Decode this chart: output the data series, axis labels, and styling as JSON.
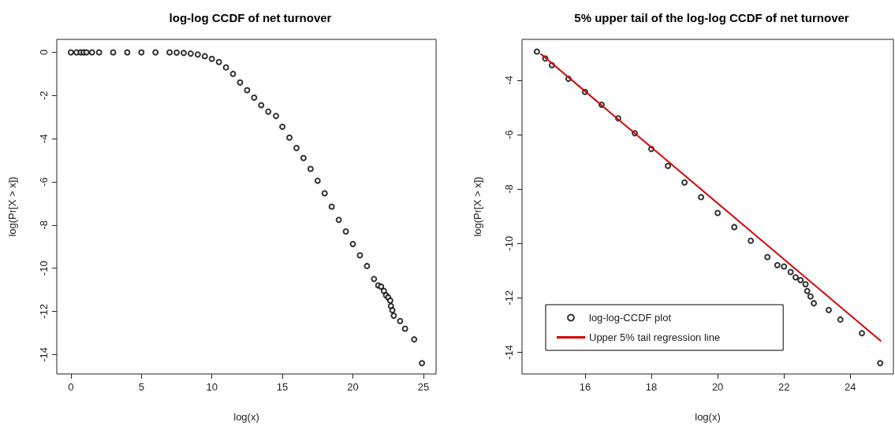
{
  "chart_data": [
    {
      "type": "scatter",
      "title": "log-log CCDF of net turnover",
      "xlabel": "log(x)",
      "ylabel": "log(Pr[X > x])",
      "xlim": [
        -1,
        25.9
      ],
      "ylim": [
        -14.9,
        0.6
      ],
      "xticks": [
        0,
        5,
        10,
        15,
        20,
        25
      ],
      "yticks": [
        -14,
        -12,
        -10,
        -8,
        -6,
        -4,
        -2,
        0
      ],
      "marker": "circle",
      "series": [
        {
          "color": "#000000",
          "x": [
            0,
            0.4,
            0.7,
            0.9,
            1.1,
            1.5,
            2,
            3,
            4,
            5,
            6,
            7,
            7.5,
            8,
            8.5,
            9,
            9.5,
            10,
            10.5,
            11,
            11.5,
            12,
            12.5,
            13,
            13.5,
            14,
            14.55,
            15,
            15.5,
            16,
            16.5,
            17,
            17.5,
            18,
            18.5,
            19,
            19.5,
            20,
            20.5,
            21,
            21.5,
            21.8,
            22,
            22.2,
            22.35,
            22.5,
            22.65,
            22.7,
            22.8,
            22.9,
            23.35,
            23.7,
            24.35,
            24.9
          ],
          "values": [
            0,
            0,
            0,
            0,
            0,
            0,
            0,
            0,
            0,
            0,
            0,
            0,
            -0.01,
            -0.03,
            -0.06,
            -0.1,
            -0.18,
            -0.3,
            -0.45,
            -0.7,
            -1.0,
            -1.4,
            -1.75,
            -2.1,
            -2.45,
            -2.75,
            -2.95,
            -3.45,
            -3.95,
            -4.43,
            -4.9,
            -5.4,
            -5.95,
            -6.53,
            -7.15,
            -7.76,
            -8.3,
            -8.88,
            -9.4,
            -9.9,
            -10.5,
            -10.8,
            -10.85,
            -11.05,
            -11.25,
            -11.35,
            -11.5,
            -11.75,
            -11.95,
            -12.2,
            -12.45,
            -12.8,
            -13.3,
            -14.4
          ]
        }
      ]
    },
    {
      "type": "scatter",
      "title": "5% upper tail of the log-log CCDF of net turnover",
      "xlabel": "log(x)",
      "ylabel": "log(Pr[X > x])",
      "xlim": [
        14.1,
        25.3
      ],
      "ylim": [
        -14.8,
        -2.5
      ],
      "xticks": [
        16,
        18,
        20,
        22,
        24
      ],
      "yticks": [
        -14,
        -12,
        -10,
        -8,
        -6,
        -4
      ],
      "legend": "bottom left",
      "series": [
        {
          "name": "log-log-CCDF plot",
          "marker": "circle",
          "color": "#000000",
          "x": [
            14.55,
            14.8,
            15,
            15.5,
            16,
            16.5,
            17,
            17.5,
            18,
            18.5,
            19,
            19.5,
            20,
            20.5,
            21,
            21.5,
            21.8,
            22,
            22.2,
            22.35,
            22.5,
            22.65,
            22.7,
            22.8,
            22.9,
            23.35,
            23.7,
            24.35,
            24.9
          ],
          "values": [
            -2.95,
            -3.2,
            -3.45,
            -3.95,
            -4.43,
            -4.9,
            -5.4,
            -5.95,
            -6.53,
            -7.15,
            -7.76,
            -8.3,
            -8.88,
            -9.4,
            -9.9,
            -10.5,
            -10.8,
            -10.85,
            -11.05,
            -11.25,
            -11.35,
            -11.5,
            -11.75,
            -11.95,
            -12.2,
            -12.45,
            -12.8,
            -13.3,
            -14.4
          ]
        },
        {
          "name": "Upper 5% tail regression line",
          "type": "line",
          "color": "#d40000",
          "x": [
            14.66,
            24.93
          ],
          "values": [
            -3.03,
            -13.6
          ]
        }
      ]
    }
  ]
}
